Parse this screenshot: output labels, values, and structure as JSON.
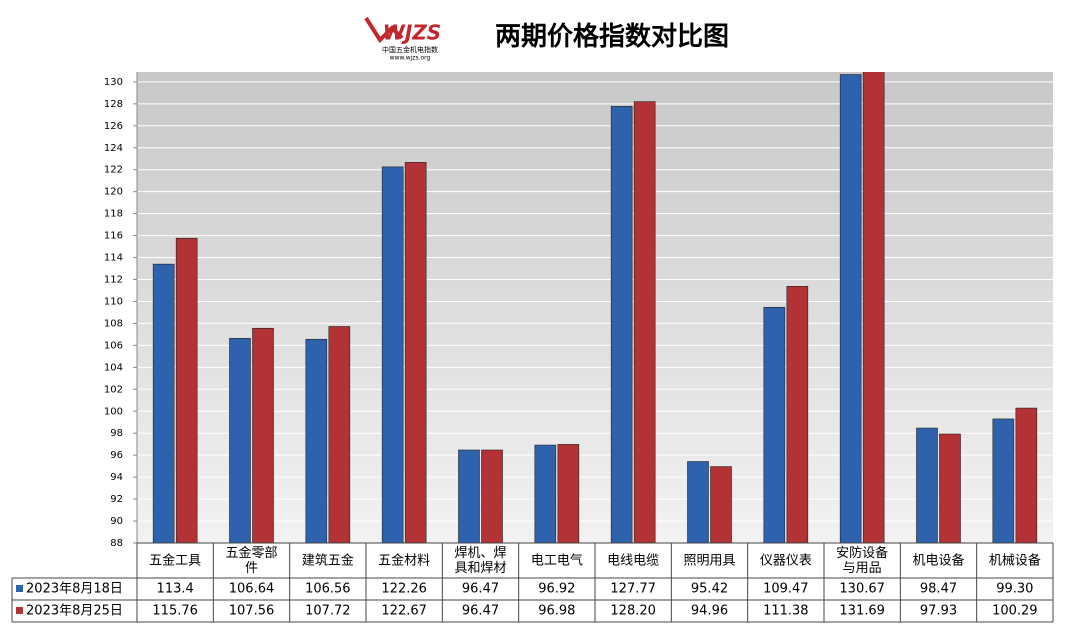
{
  "logo": {
    "text": "WJZS",
    "subtitle": "中国五金机电指数",
    "url": "www.wjzs.org"
  },
  "chart_data": {
    "type": "bar",
    "title": "两期价格指数对比图",
    "categories": [
      "五金工具",
      "五金零部件",
      "建筑五金",
      "五金材料",
      "焊机、焊具和焊材",
      "电工电气",
      "电线电缆",
      "照明用具",
      "仪器仪表",
      "安防设备与用品",
      "机电设备",
      "机械设备"
    ],
    "series": [
      {
        "name": "2023年8月18日",
        "color": "#2f62ad",
        "values": [
          113.4,
          106.64,
          106.56,
          122.26,
          96.47,
          96.92,
          127.77,
          95.42,
          109.47,
          130.67,
          98.47,
          99.3
        ],
        "value_labels": [
          "113.4",
          "106.64",
          "106.56",
          "122.26",
          "96.47",
          "96.92",
          "127.77",
          "95.42",
          "109.47",
          "130.67",
          "98.47",
          "99.30"
        ]
      },
      {
        "name": "2023年8月25日",
        "color": "#b23236",
        "values": [
          115.76,
          107.56,
          107.72,
          122.67,
          96.47,
          96.98,
          128.2,
          94.96,
          111.38,
          131.69,
          97.93,
          100.29
        ],
        "value_labels": [
          "115.76",
          "107.56",
          "107.72",
          "122.67",
          "96.47",
          "96.98",
          "128.20",
          "94.96",
          "111.38",
          "131.69",
          "97.93",
          "100.29"
        ]
      }
    ],
    "ylim": [
      88,
      130.9
    ],
    "yticks": [
      88,
      90,
      92,
      94,
      96,
      98,
      100,
      102,
      104,
      106,
      108,
      110,
      112,
      114,
      116,
      118,
      120,
      122,
      124,
      126,
      128,
      130
    ],
    "grid": true
  }
}
